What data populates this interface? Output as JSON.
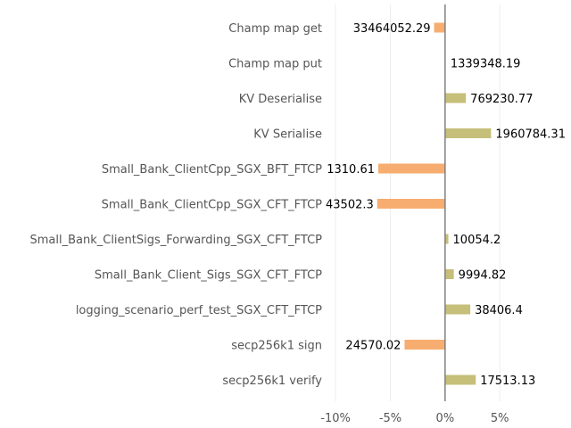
{
  "chart_data": {
    "type": "bar",
    "orientation": "horizontal",
    "title": "",
    "xlabel": "",
    "ylabel": "",
    "xlim": [
      -10.5,
      11.5
    ],
    "x_ticks": [
      -10,
      -5,
      0,
      5
    ],
    "x_tick_labels": [
      "-10%",
      "-5%",
      "0%",
      "5%"
    ],
    "grid": "vertical",
    "legend": "none",
    "colors": {
      "increase": "#c5bf7a",
      "decrease": "#f7ad6f",
      "axis": "#808080"
    },
    "categories": [
      "Champ map get",
      "Champ map put",
      "KV Deserialise",
      "KV Serialise",
      "Small_Bank_ClientCpp_SGX_BFT_FTCP",
      "Small_Bank_ClientCpp_SGX_CFT_FTCP",
      "Small_Bank_ClientSigs_Forwarding_SGX_CFT_FTCP",
      "Small_Bank_Client_Sigs_SGX_CFT_FTCP",
      "logging_scenario_perf_test_SGX_CFT_FTCP",
      "secp256k1 sign",
      "secp256k1 verify"
    ],
    "values": [
      -1.0,
      0.0,
      1.9,
      4.2,
      -6.1,
      -6.2,
      0.3,
      0.8,
      2.3,
      -3.7,
      2.8
    ],
    "data_labels": [
      "33464052.29",
      "1339348.19",
      "769230.77",
      "1960784.31",
      "1310.61",
      "43502.3",
      "10054.2",
      "9994.82",
      "38406.4",
      "24570.02",
      "17513.13"
    ]
  }
}
